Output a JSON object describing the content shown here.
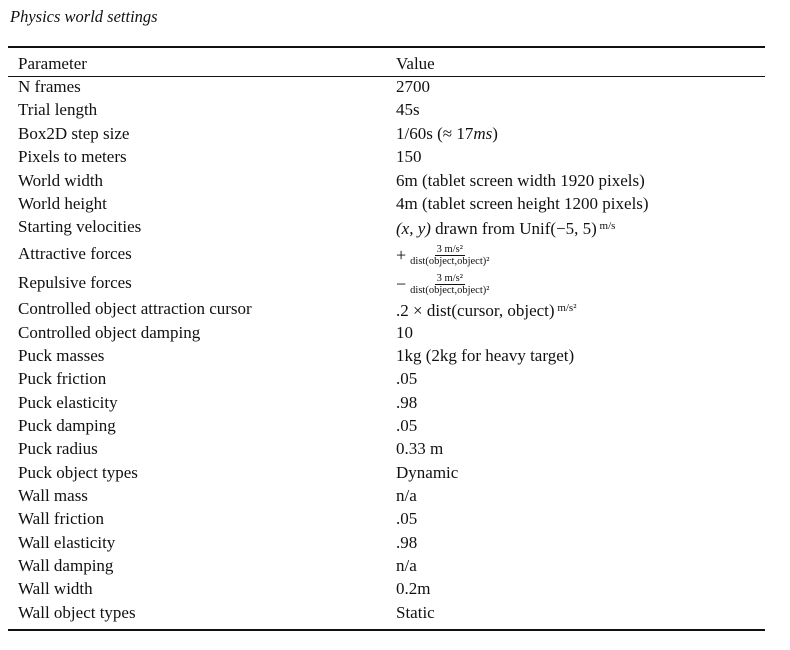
{
  "caption": "Physics world settings",
  "table": {
    "headers": {
      "parameter": "Parameter",
      "value": "Value"
    },
    "rows": [
      {
        "param": "N frames",
        "value": "2700"
      },
      {
        "param": "Trial length",
        "value": "45s"
      },
      {
        "param": "Box2D step size",
        "value_pre": "1/60s (≈ 17",
        "value_italic": "ms",
        "value_post": ")"
      },
      {
        "param": "Pixels to meters",
        "value": "150"
      },
      {
        "param": "World width",
        "value": "6m (tablet screen width 1920 pixels)"
      },
      {
        "param": "World height",
        "value": "4m (tablet screen height 1200 pixels)"
      },
      {
        "param": "Starting velocities",
        "value_italic": "(x, y)",
        "value_post": " drawn from Unif(−5, 5)",
        "unit": "m/s"
      },
      {
        "param": "Attractive forces",
        "sign": "+",
        "num": "3 m/s²",
        "den": "dist(object,object)²"
      },
      {
        "param": "Repulsive forces",
        "sign": "−",
        "num": "3 m/s²",
        "den": "dist(object,object)²"
      },
      {
        "param": "Controlled object attraction cursor",
        "value": ".2 × dist(cursor, object)",
        "unit": "m/s²"
      },
      {
        "param": "Controlled object damping",
        "value": "10"
      },
      {
        "param": "Puck masses",
        "value": "1kg (2kg for heavy target)"
      },
      {
        "param": "Puck friction",
        "value": ".05"
      },
      {
        "param": "Puck elasticity",
        "value": ".98"
      },
      {
        "param": "Puck damping",
        "value": ".05"
      },
      {
        "param": "Puck radius",
        "value": "0.33 m"
      },
      {
        "param": "Puck object types",
        "value": "Dynamic"
      },
      {
        "param": "Wall mass",
        "value": "n/a"
      },
      {
        "param": "Wall friction",
        "value": ".05"
      },
      {
        "param": "Wall elasticity",
        "value": ".98"
      },
      {
        "param": "Wall damping",
        "value": "n/a"
      },
      {
        "param": "Wall width",
        "value": "0.2m"
      },
      {
        "param": "Wall object types",
        "value": "Static"
      }
    ]
  }
}
